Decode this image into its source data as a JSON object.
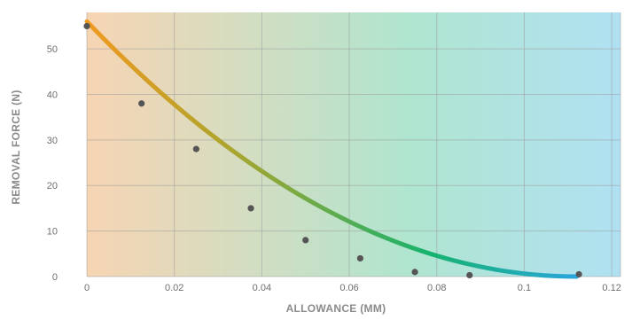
{
  "chart_data": {
    "type": "scatter",
    "xlabel": "ALLOWANCE (MM)",
    "ylabel": "REMOVAL FORCE (N)",
    "xlim": [
      0,
      0.122
    ],
    "ylim": [
      0,
      58
    ],
    "x_ticks": [
      0,
      0.02,
      0.04,
      0.06,
      0.08,
      0.1,
      0.12
    ],
    "x_tick_labels": [
      "0",
      "0.02",
      "0.04",
      "0.06",
      "0.08",
      "0.1",
      "0.12"
    ],
    "y_ticks": [
      0,
      10,
      20,
      30,
      40,
      50
    ],
    "y_tick_labels": [
      "0",
      "10",
      "20",
      "30",
      "40",
      "50"
    ],
    "grid": true,
    "points": {
      "x": [
        0,
        0.0125,
        0.025,
        0.0375,
        0.05,
        0.0625,
        0.075,
        0.0875,
        0.1125
      ],
      "y": [
        55,
        38,
        28,
        15,
        8,
        4,
        1,
        0.3,
        0.5
      ]
    },
    "trend": {
      "type": "quadratic",
      "x_start": 0,
      "x_end": 0.112,
      "y_at_start": 56,
      "vertex_x": 0.112
    },
    "colors": {
      "points": "#555555",
      "trend_start": "#f09a20",
      "trend_mid": "#16b36e",
      "trend_end": "#29a6dd",
      "bg_start": "#f7d5b3",
      "bg_mid": "#b0e5cf",
      "bg_end": "#b0e1f3"
    }
  }
}
